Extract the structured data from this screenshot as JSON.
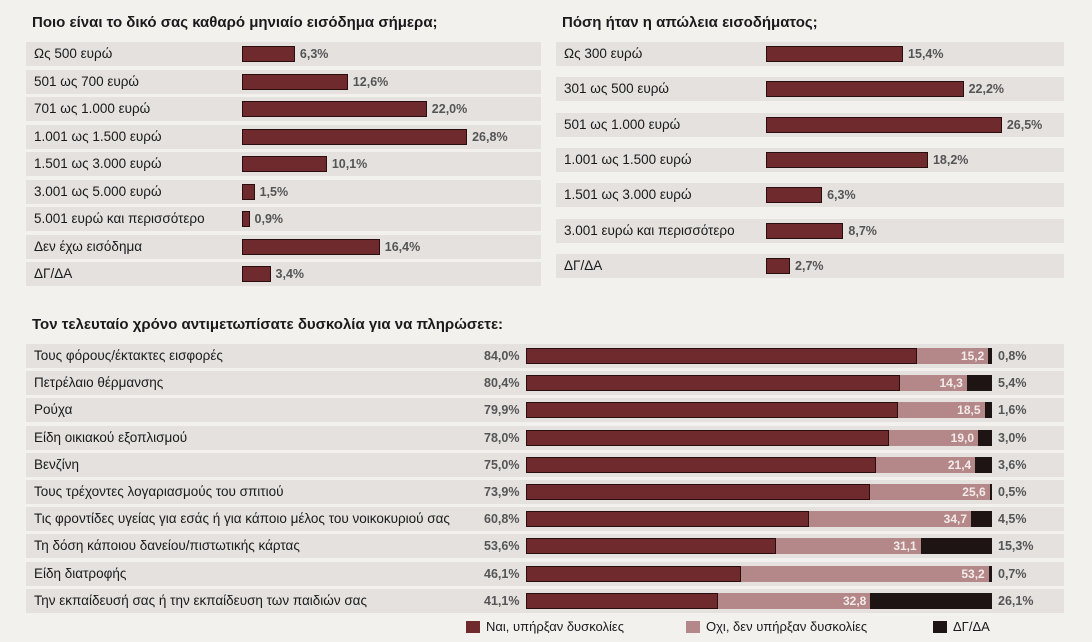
{
  "chart_data": [
    {
      "type": "bar",
      "title": "Ποιο είναι το δικό σας καθαρό μηνιαίο εισόδημα σήμερα;",
      "categories": [
        "Ως 500 ευρώ",
        "501 ως 700 ευρώ",
        "701 ως 1.000 ευρώ",
        "1.001 ως 1.500 ευρώ",
        "1.501 ως 3.000 ευρώ",
        "3.001 ως 5.000 ευρώ",
        "5.001 ευρώ και περισσότερο",
        "Δεν έχω εισόδημα",
        "ΔΓ/ΔΑ"
      ],
      "values": [
        6.3,
        12.6,
        22.0,
        26.8,
        10.1,
        1.5,
        0.9,
        16.4,
        3.4
      ],
      "value_labels": [
        "6,3%",
        "12,6%",
        "22,0%",
        "26,8%",
        "10,1%",
        "1,5%",
        "0,9%",
        "16,4%",
        "3,4%"
      ]
    },
    {
      "type": "bar",
      "title": "Πόση ήταν η απώλεια εισοδήματος;",
      "categories": [
        "Ως 300 ευρώ",
        "301 ως 500 ευρώ",
        "501 ως 1.000 ευρώ",
        "1.001 ως 1.500 ευρώ",
        "1.501 ως 3.000 ευρώ",
        "3.001 ευρώ και περισσότερο",
        "ΔΓ/ΔΑ"
      ],
      "values": [
        15.4,
        22.2,
        26.5,
        18.2,
        6.3,
        8.7,
        2.7
      ],
      "value_labels": [
        "15,4%",
        "22,2%",
        "26,5%",
        "18,2%",
        "6,3%",
        "8,7%",
        "2,7%"
      ]
    },
    {
      "type": "bar",
      "stacked": true,
      "title": "Τον τελευταίο χρόνο αντιμετωπίσατε δυσκολία για να πληρώσετε:",
      "categories": [
        "Τους φόρους/έκτακτες εισφορές",
        "Πετρέλαιο θέρμανσης",
        "Ρούχα",
        "Είδη οικιακού εξοπλισμού",
        "Βενζίνη",
        "Τους τρέχοντες λογαριασμούς του σπιτιού",
        "Τις φροντίδες υγείας για εσάς ή για κάποιο μέλος του νοικοκυριού σας",
        "Τη δόση κάποιου δανείου/πιστωτικής κάρτας",
        "Είδη διατροφής",
        "Την εκπαίδευσή σας ή την εκπαίδευση των παιδιών σας"
      ],
      "series": [
        {
          "name": "Ναι, υπήρξαν δυσκολίες",
          "color": "#6e2a2c",
          "values": [
            84.0,
            80.4,
            79.9,
            78.0,
            75.0,
            73.9,
            60.8,
            53.6,
            46.1,
            41.1
          ],
          "labels": [
            "84,0%",
            "80,4%",
            "79,9%",
            "78,0%",
            "75,0%",
            "73,9%",
            "60,8%",
            "53,6%",
            "46,1%",
            "41,1%"
          ]
        },
        {
          "name": "Οχι, δεν υπήρξαν δυσκολίες",
          "color": "#b48888",
          "values": [
            15.2,
            14.3,
            18.5,
            19.0,
            21.4,
            25.6,
            34.7,
            31.1,
            53.2,
            32.8
          ],
          "labels": [
            "15,2",
            "14,3",
            "18,5",
            "19,0",
            "21,4",
            "25,6",
            "34,7",
            "31,1",
            "53,2",
            "32,8"
          ]
        },
        {
          "name": "ΔΓ/ΔΑ",
          "color": "#1e1414",
          "values": [
            0.8,
            5.4,
            1.6,
            3.0,
            3.6,
            0.5,
            4.5,
            15.3,
            0.7,
            26.1
          ],
          "labels": [
            "0,8%",
            "5,4%",
            "1,6%",
            "3,0%",
            "3,6%",
            "0,5%",
            "4,5%",
            "15,3%",
            "0,7%",
            "26,1%"
          ]
        }
      ],
      "legend": "bottom-right"
    }
  ]
}
